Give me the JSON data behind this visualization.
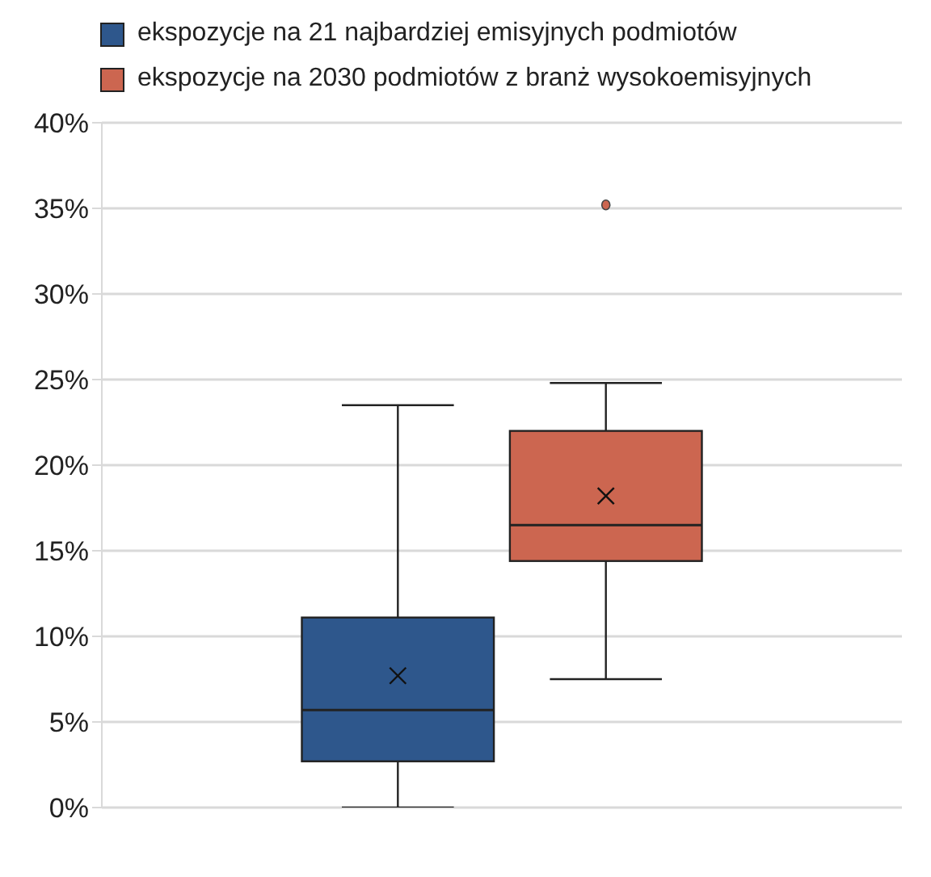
{
  "chart_data": {
    "type": "box",
    "categories": [
      null
    ],
    "ylim": [
      0,
      40
    ],
    "yticks": [
      {
        "value": 0,
        "label": "0%"
      },
      {
        "value": 5,
        "label": "5%"
      },
      {
        "value": 10,
        "label": "10%"
      },
      {
        "value": 15,
        "label": "15%"
      },
      {
        "value": 20,
        "label": "20%"
      },
      {
        "value": 25,
        "label": "25%"
      },
      {
        "value": 30,
        "label": "30%"
      },
      {
        "value": 35,
        "label": "35%"
      },
      {
        "value": 40,
        "label": "40%"
      }
    ],
    "grid": "y",
    "legend": "top left",
    "tick_labels": "y",
    "series": [
      {
        "name": "ekspozycje na 21 najbardziej emisyjnych podmiotów",
        "color": "#2e578c",
        "boxes": [
          {
            "low": 0,
            "q1": 2.7,
            "median": 5.7,
            "q3": 11.1,
            "high": 23.5,
            "mean": 7.7
          }
        ]
      },
      {
        "name": "ekspozycje na 2030 podmiotów z branż wysokoemisyjnych",
        "color": "#cc6650",
        "boxes": [
          {
            "low": 7.5,
            "q1": 14.4,
            "median": 16.5,
            "q3": 22.0,
            "high": 24.8,
            "mean": 18.2,
            "outliers": [
              35.2
            ]
          }
        ]
      }
    ]
  }
}
